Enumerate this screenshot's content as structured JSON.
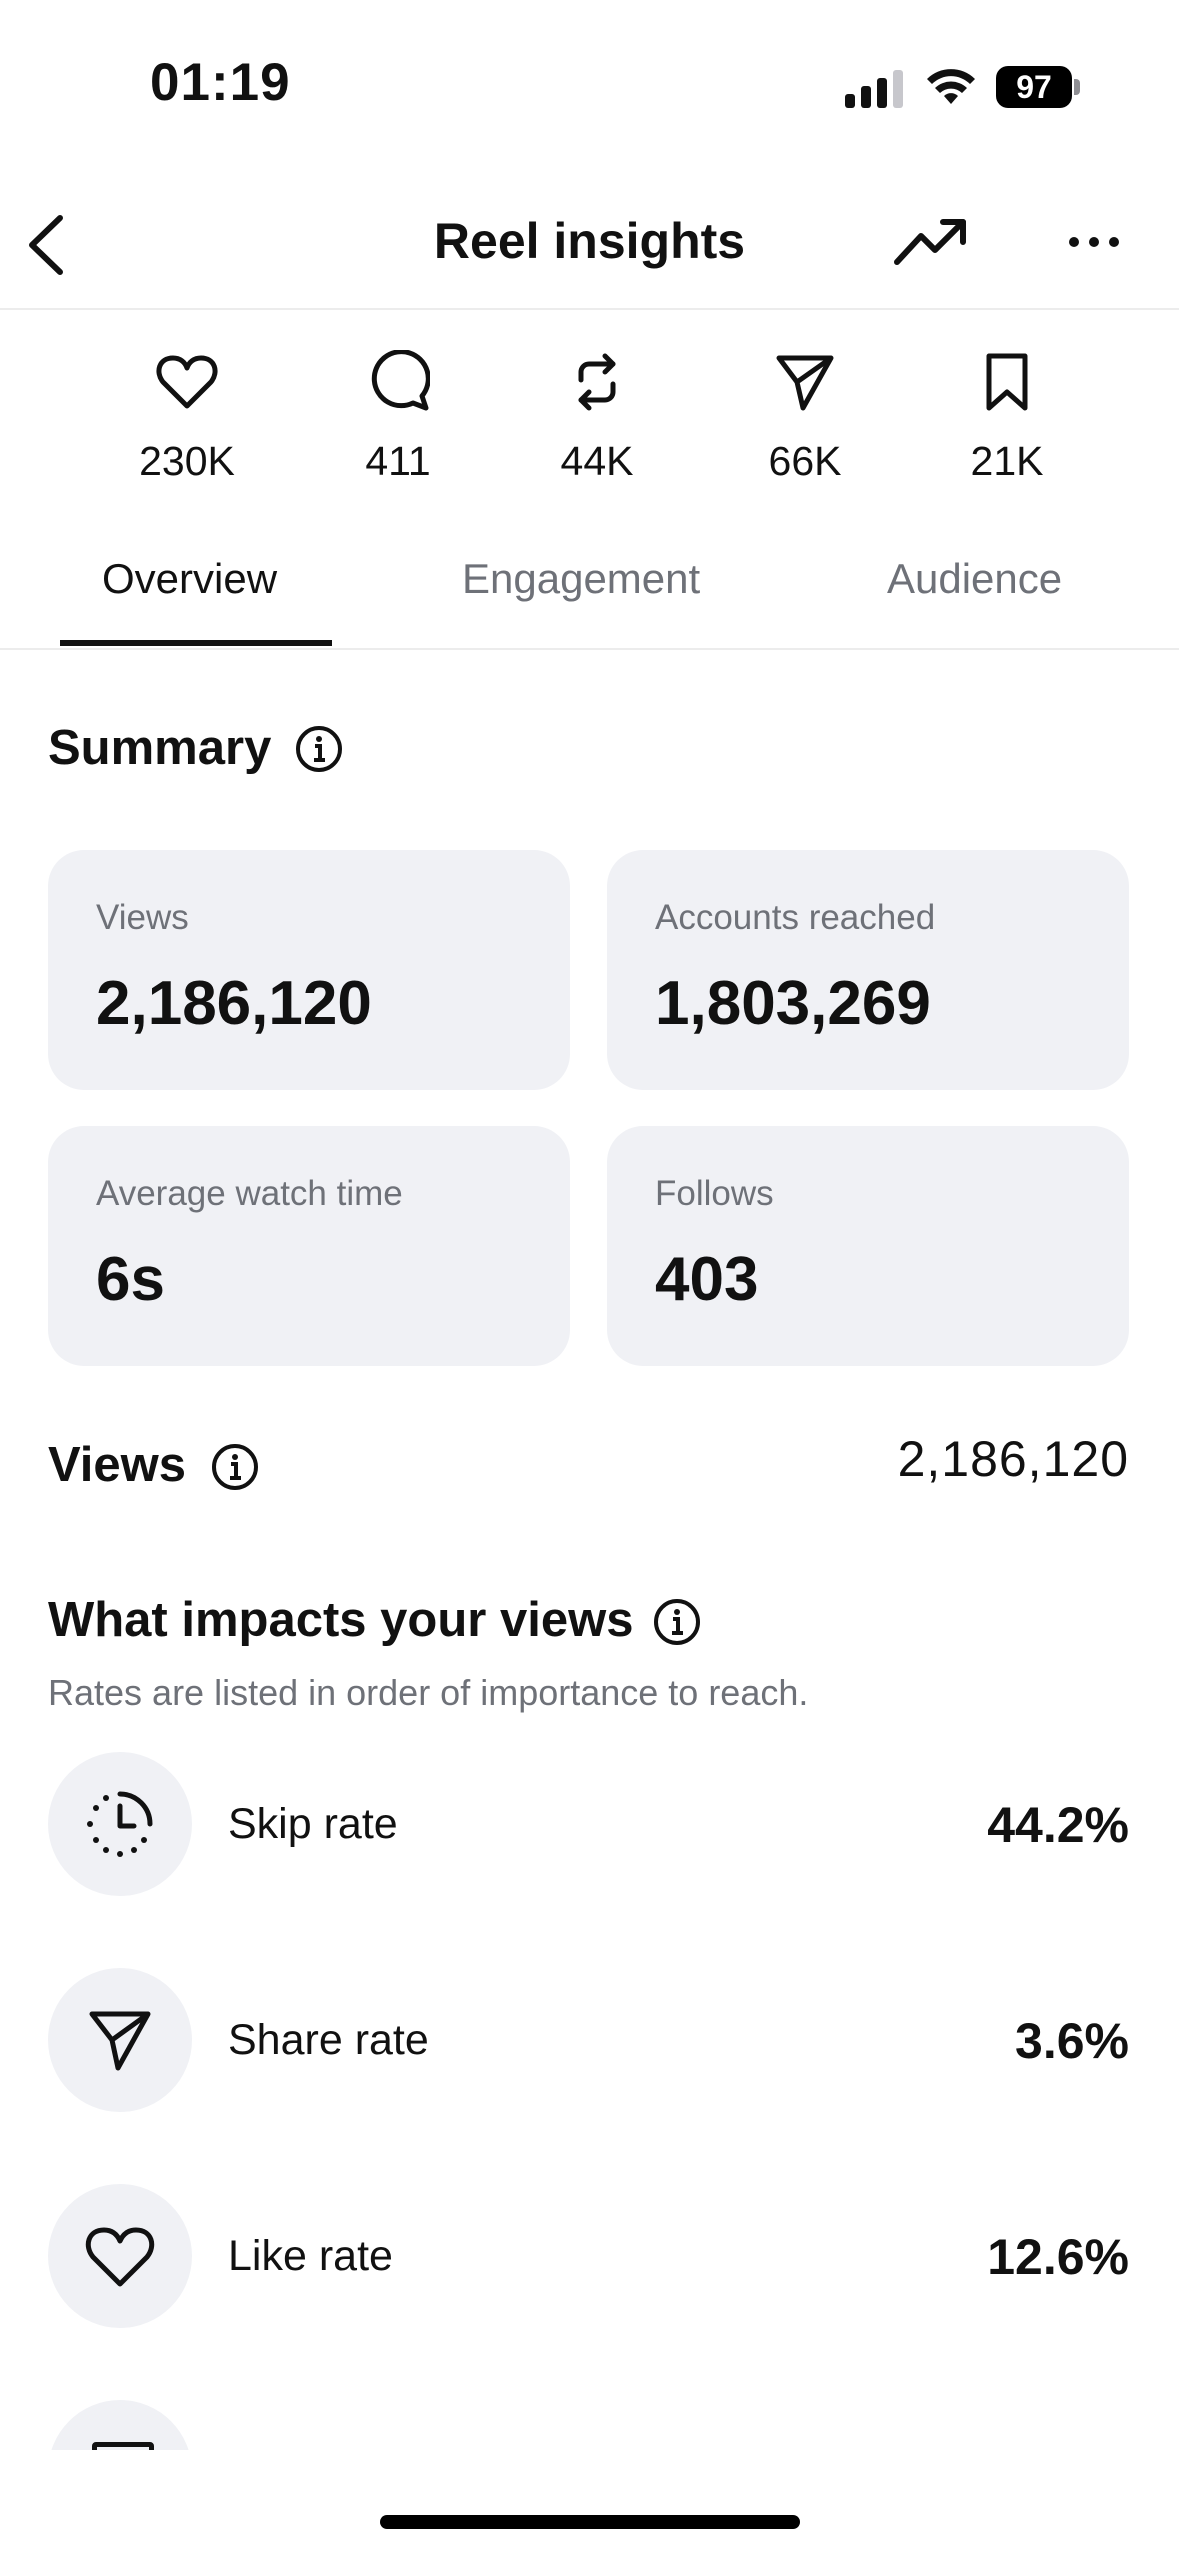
{
  "status_bar": {
    "time": "01:19",
    "battery": "97"
  },
  "header": {
    "title": "Reel insights"
  },
  "stats": [
    {
      "icon": "heart-icon",
      "value": "230K"
    },
    {
      "icon": "comment-icon",
      "value": "411"
    },
    {
      "icon": "repost-icon",
      "value": "44K"
    },
    {
      "icon": "share-icon",
      "value": "66K"
    },
    {
      "icon": "bookmark-icon",
      "value": "21K"
    }
  ],
  "tabs": [
    {
      "label": "Overview",
      "active": true
    },
    {
      "label": "Engagement",
      "active": false
    },
    {
      "label": "Audience",
      "active": false
    }
  ],
  "summary": {
    "title": "Summary",
    "cards": [
      {
        "label": "Views",
        "value": "2,186,120"
      },
      {
        "label": "Accounts reached",
        "value": "1,803,269"
      },
      {
        "label": "Average watch time",
        "value": "6s"
      },
      {
        "label": "Follows",
        "value": "403"
      }
    ]
  },
  "views": {
    "title": "Views",
    "total": "2,186,120"
  },
  "impacts": {
    "title": "What impacts your views",
    "subtitle": "Rates are listed in order of importance to reach.",
    "rows": [
      {
        "icon": "skip-clock-icon",
        "label": "Skip rate",
        "value": "44.2%"
      },
      {
        "icon": "share-icon",
        "label": "Share rate",
        "value": "3.6%"
      },
      {
        "icon": "heart-icon",
        "label": "Like rate",
        "value": "12.6%"
      }
    ]
  },
  "colors": {
    "card_bg": "#f0f1f5",
    "muted_text": "#6e7178",
    "text": "#111111"
  }
}
